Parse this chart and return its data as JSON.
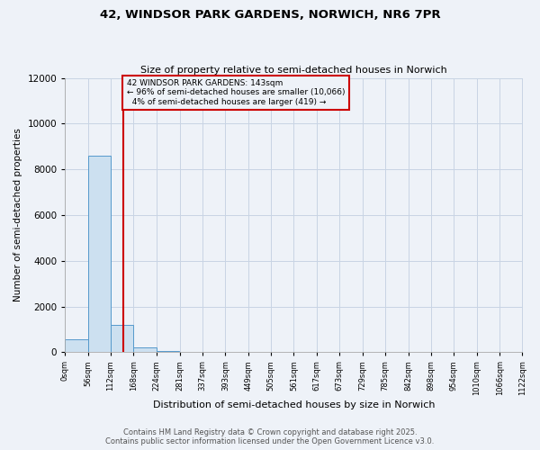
{
  "title1": "42, WINDSOR PARK GARDENS, NORWICH, NR6 7PR",
  "title2": "Size of property relative to semi-detached houses in Norwich",
  "xlabel": "Distribution of semi-detached houses by size in Norwich",
  "ylabel": "Number of semi-detached properties",
  "property_size": 143,
  "property_label": "42 WINDSOR PARK GARDENS: 143sqm",
  "pct_smaller": 96,
  "count_smaller": 10066,
  "pct_larger": 4,
  "count_larger": 419,
  "bin_width": 56,
  "bin_edges": [
    0,
    56,
    112,
    168,
    224,
    281,
    337,
    393,
    449,
    505,
    561,
    617,
    673,
    729,
    785,
    842,
    898,
    954,
    1010,
    1066,
    1122
  ],
  "bar_heights": [
    550,
    8600,
    1200,
    200,
    50,
    10,
    5,
    3,
    2,
    1,
    1,
    0,
    0,
    0,
    0,
    0,
    0,
    0,
    0,
    0
  ],
  "bar_color": "#cce0f0",
  "bar_edge_color": "#5599cc",
  "red_line_color": "#cc0000",
  "grid_color": "#c8d4e4",
  "background_color": "#eef2f8",
  "ylim": [
    0,
    12000
  ],
  "yticks": [
    0,
    2000,
    4000,
    6000,
    8000,
    10000,
    12000
  ],
  "footer": "Contains HM Land Registry data © Crown copyright and database right 2025.\nContains public sector information licensed under the Open Government Licence v3.0.",
  "figwidth": 6.0,
  "figheight": 5.0,
  "dpi": 100
}
